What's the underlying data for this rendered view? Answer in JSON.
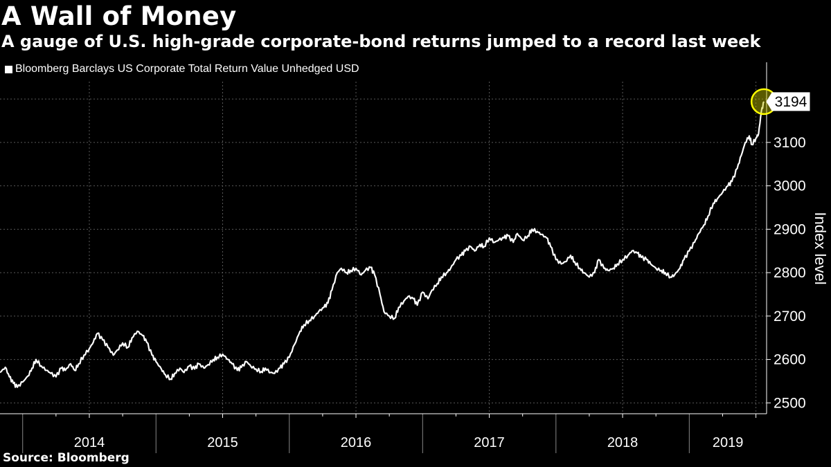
{
  "header": {
    "title": "A Wall of Money",
    "subtitle": "A gauge of U.S. high-grade corporate-bond returns jumped to a record last week"
  },
  "legend": {
    "label": "Bloomberg Barclays US Corporate Total Return Value Unhedged USD"
  },
  "footer": {
    "source": "Source: Bloomberg"
  },
  "colors": {
    "background": "#000000",
    "line": "#ffffff",
    "grid": "#5a5a5a",
    "highlight": "#ffff00"
  },
  "chart_data": {
    "type": "line",
    "title": "A Wall of Money",
    "subtitle": "A gauge of U.S. high-grade corporate-bond returns jumped to a record last week",
    "ylabel": "Index level",
    "xlabel": "",
    "ylim": [
      2475,
      3240
    ],
    "xlim": [
      2013.83,
      2019.58
    ],
    "y_ticks": [
      2500,
      2600,
      2700,
      2800,
      2900,
      3000,
      3100
    ],
    "year_labels": [
      "2014",
      "2015",
      "2016",
      "2017",
      "2018",
      "2019"
    ],
    "year_starts": [
      2014,
      2015,
      2016,
      2017,
      2018,
      2019
    ],
    "grid": true,
    "last_value_label": "3194",
    "last_value": 3194,
    "series": [
      {
        "name": "Bloomberg Barclays US Corporate Total Return Value Unhedged USD",
        "x": [
          2013.83,
          2013.87,
          2013.9,
          2013.93,
          2013.96,
          2014.0,
          2014.04,
          2014.07,
          2014.1,
          2014.14,
          2014.18,
          2014.21,
          2014.25,
          2014.29,
          2014.32,
          2014.36,
          2014.39,
          2014.42,
          2014.46,
          2014.5,
          2014.53,
          2014.56,
          2014.6,
          2014.64,
          2014.68,
          2014.71,
          2014.75,
          2014.79,
          2014.82,
          2014.86,
          2014.9,
          2014.93,
          2014.97,
          2015.0,
          2015.04,
          2015.07,
          2015.11,
          2015.14,
          2015.18,
          2015.21,
          2015.25,
          2015.29,
          2015.32,
          2015.36,
          2015.39,
          2015.43,
          2015.46,
          2015.5,
          2015.54,
          2015.57,
          2015.61,
          2015.64,
          2015.68,
          2015.71,
          2015.75,
          2015.79,
          2015.82,
          2015.86,
          2015.89,
          2015.93,
          2015.96,
          2016.0,
          2016.04,
          2016.08,
          2016.11,
          2016.15,
          2016.19,
          2016.22,
          2016.26,
          2016.29,
          2016.32,
          2016.36,
          2016.39,
          2016.43,
          2016.46,
          2016.5,
          2016.54,
          2016.57,
          2016.61,
          2016.64,
          2016.68,
          2016.71,
          2016.75,
          2016.79,
          2016.82,
          2016.86,
          2016.89,
          2016.93,
          2016.96,
          2017.0,
          2017.04,
          2017.07,
          2017.11,
          2017.14,
          2017.18,
          2017.21,
          2017.25,
          2017.29,
          2017.32,
          2017.36,
          2017.39,
          2017.43,
          2017.46,
          2017.5,
          2017.54,
          2017.57,
          2017.61,
          2017.64,
          2017.68,
          2017.71,
          2017.75,
          2017.79,
          2017.82,
          2017.86,
          2017.89,
          2017.93,
          2017.96,
          2018.0,
          2018.04,
          2018.07,
          2018.11,
          2018.14,
          2018.18,
          2018.21,
          2018.25,
          2018.29,
          2018.32,
          2018.36,
          2018.39,
          2018.43,
          2018.46,
          2018.5,
          2018.54,
          2018.57,
          2018.61,
          2018.64,
          2018.68,
          2018.71,
          2018.75,
          2018.79,
          2018.82,
          2018.86,
          2018.89,
          2018.93,
          2018.96,
          2019.0,
          2019.04,
          2019.07,
          2019.11,
          2019.14,
          2019.18,
          2019.21,
          2019.25,
          2019.29,
          2019.32,
          2019.36,
          2019.39,
          2019.42,
          2019.45,
          2019.47,
          2019.5,
          2019.52,
          2019.54,
          2019.56
        ],
        "values": [
          2570,
          2582,
          2560,
          2545,
          2536,
          2548,
          2562,
          2580,
          2600,
          2585,
          2575,
          2568,
          2560,
          2580,
          2575,
          2590,
          2575,
          2590,
          2610,
          2625,
          2640,
          2660,
          2645,
          2628,
          2610,
          2622,
          2638,
          2628,
          2650,
          2665,
          2655,
          2640,
          2610,
          2595,
          2578,
          2565,
          2555,
          2568,
          2580,
          2570,
          2585,
          2578,
          2590,
          2580,
          2588,
          2600,
          2605,
          2612,
          2600,
          2590,
          2575,
          2582,
          2595,
          2585,
          2578,
          2572,
          2580,
          2570,
          2568,
          2580,
          2590,
          2605,
          2635,
          2665,
          2680,
          2690,
          2700,
          2710,
          2720,
          2730,
          2760,
          2800,
          2810,
          2800,
          2805,
          2810,
          2795,
          2805,
          2812,
          2795,
          2750,
          2710,
          2700,
          2695,
          2720,
          2735,
          2745,
          2740,
          2725,
          2755,
          2740,
          2760,
          2775,
          2790,
          2800,
          2810,
          2830,
          2840,
          2850,
          2860,
          2850,
          2865,
          2860,
          2880,
          2870,
          2875,
          2880,
          2885,
          2870,
          2890,
          2875,
          2885,
          2900,
          2895,
          2888,
          2880,
          2860,
          2830,
          2820,
          2825,
          2840,
          2825,
          2810,
          2800,
          2790,
          2800,
          2830,
          2810,
          2805,
          2810,
          2820,
          2830,
          2840,
          2850,
          2845,
          2835,
          2830,
          2820,
          2810,
          2805,
          2800,
          2790,
          2795,
          2810,
          2830,
          2850,
          2870,
          2890,
          2910,
          2930,
          2960,
          2970,
          2985,
          3000,
          3010,
          3040,
          3070,
          3100,
          3115,
          3095,
          3110,
          3120,
          3170,
          3194
        ]
      }
    ]
  }
}
